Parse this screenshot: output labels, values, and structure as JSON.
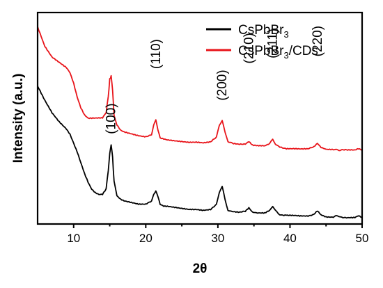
{
  "chart_data": {
    "type": "line",
    "xlabel": "2θ",
    "ylabel": "Intensity (a.u.)",
    "xlim": [
      5,
      50
    ],
    "xticks": [
      10,
      20,
      30,
      40,
      50
    ],
    "y_tick_labels": "none",
    "legend": {
      "placement": "top-right",
      "entries": [
        {
          "base": "CsPbBr",
          "sub": "3",
          "suffix": ""
        },
        {
          "base": "CsPbBr",
          "sub": "3",
          "suffix": "/CDs"
        }
      ]
    },
    "peak_labels": [
      {
        "text": "(100)",
        "x": 15.2
      },
      {
        "text": "(110)",
        "x": 21.4
      },
      {
        "text": "(200)",
        "x": 30.6
      },
      {
        "text": "(210)",
        "x": 34.3
      },
      {
        "text": "(211)",
        "x": 37.6
      },
      {
        "text": "(220)",
        "x": 43.8
      }
    ],
    "series": [
      {
        "name": "CsPbBr3",
        "color": "#000000",
        "x": [
          5,
          6,
          7,
          8,
          9,
          9.5,
          10,
          10.5,
          11,
          11.5,
          12,
          12.5,
          13,
          13.5,
          14,
          14.5,
          14.8,
          15.0,
          15.2,
          15.4,
          15.6,
          16,
          16.5,
          17,
          18,
          19,
          20,
          20.8,
          21.1,
          21.4,
          21.7,
          22.0,
          22.5,
          23,
          24,
          25,
          26,
          27,
          28,
          29,
          29.8,
          30.2,
          30.6,
          31.0,
          31.4,
          32,
          33,
          33.8,
          34.3,
          34.8,
          35.5,
          36.5,
          37.2,
          37.6,
          38.0,
          38.6,
          39.5,
          40.5,
          41.5,
          42.5,
          43.3,
          43.8,
          44.3,
          45,
          46,
          46.6,
          47.2,
          48,
          48.5,
          49,
          49.5,
          50
        ],
        "y": [
          78,
          70,
          63,
          58,
          54,
          51,
          46,
          41,
          35,
          29,
          24,
          20,
          18,
          17,
          17,
          20,
          30,
          40,
          45,
          38,
          24,
          16,
          14,
          13,
          12,
          11,
          11,
          13,
          17,
          19,
          15,
          11,
          10,
          10,
          9.5,
          9,
          8.5,
          8.5,
          8,
          8.5,
          11,
          18,
          21,
          14,
          8,
          7,
          6.5,
          7,
          9,
          6.5,
          6,
          6,
          7.5,
          10,
          7.5,
          5.5,
          5,
          5,
          4.8,
          4.8,
          5.5,
          7.5,
          5.2,
          4.2,
          4,
          4.5,
          4,
          3.5,
          3.5,
          3.5,
          4.5,
          3.5
        ]
      },
      {
        "name": "CsPbBr3/CDs",
        "color": "#e8141a",
        "x": [
          5,
          6,
          7,
          8,
          9,
          9.5,
          10,
          10.5,
          11,
          11.5,
          12,
          12.5,
          13,
          13.5,
          14,
          14.5,
          14.8,
          15.0,
          15.2,
          15.4,
          15.6,
          16,
          16.5,
          17,
          18,
          19,
          20,
          20.8,
          21.1,
          21.4,
          21.7,
          22.0,
          22.5,
          23,
          24,
          25,
          26,
          27,
          28,
          29,
          29.8,
          30.2,
          30.6,
          31.0,
          31.4,
          32,
          33,
          33.8,
          34.3,
          34.8,
          35.5,
          36.5,
          37.2,
          37.6,
          38.0,
          38.6,
          39.5,
          40.5,
          41.5,
          42.5,
          43.3,
          43.8,
          44.3,
          45,
          46,
          46.6,
          47.2,
          48,
          48.5,
          49,
          49.5,
          50
        ],
        "y": [
          112,
          101,
          95,
          92,
          89,
          86,
          80,
          72,
          66,
          62,
          60,
          60,
          60,
          60,
          60,
          63,
          72,
          82,
          84,
          76,
          62,
          56,
          53,
          52,
          51,
          50,
          49.5,
          51,
          56,
          59,
          53,
          49,
          48.5,
          48,
          47.5,
          47,
          46.5,
          46.5,
          46,
          46.5,
          49,
          56,
          59,
          52,
          47,
          45.5,
          45,
          45.5,
          47,
          45,
          44.5,
          44.5,
          45.5,
          48,
          45.5,
          43.5,
          43,
          43,
          42.8,
          42.8,
          43.5,
          45.5,
          43.2,
          42.2,
          42,
          42.2,
          42,
          41.8,
          41.8,
          41.8,
          42.6,
          41.8
        ]
      }
    ]
  }
}
